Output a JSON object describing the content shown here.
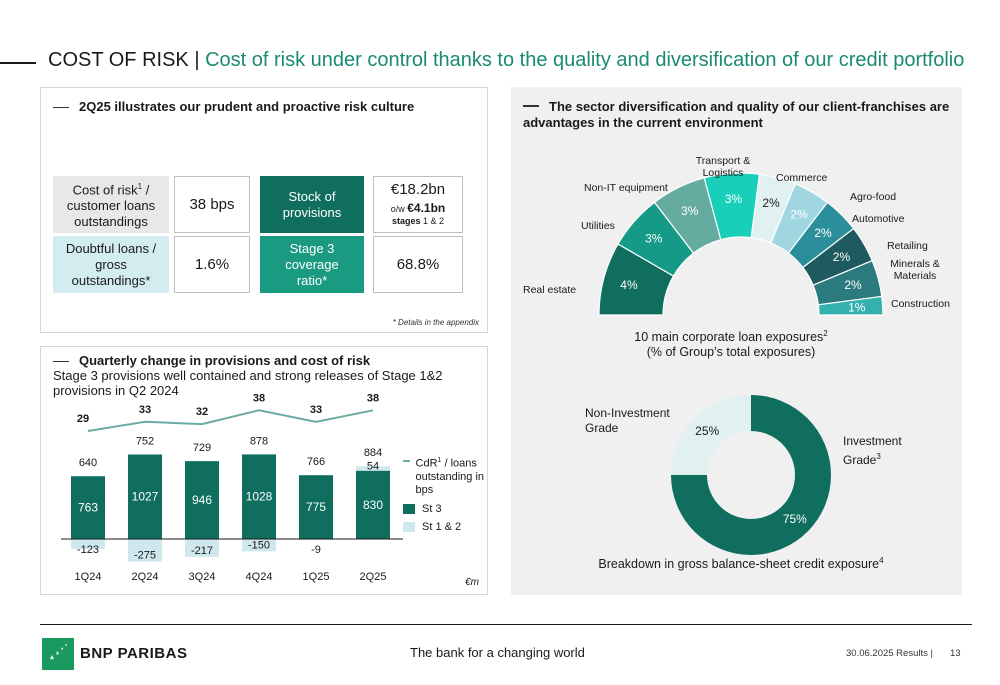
{
  "header": {
    "title_main": "COST OF RISK |",
    "title_sub": "Cost of risk under control thanks to the quality and diversification of our credit portfolio"
  },
  "kpi_panel": {
    "heading": "2Q25 illustrates our prudent and proactive risk culture",
    "cost_of_risk_label_a": "Cost of risk",
    "cost_of_risk_sup": "1",
    "cost_of_risk_label_b": " / customer loans outstandings",
    "cost_of_risk_value": "38 bps",
    "stock_label": "Stock of provisions",
    "stock_value": "€18.2bn",
    "stock_ow_prefix": "o/w ",
    "stock_ow_value": "€4.1bn",
    "stock_ow_stages": "stages",
    "stock_ow_stages_num": " 1 & 2",
    "doubtful_label": "Doubtful loans / gross outstandings*",
    "doubtful_value": "1.6%",
    "stage3_label": "Stage 3 coverage ratio*",
    "stage3_value": "68.8%",
    "note": "* Details in the appendix"
  },
  "provisions_panel": {
    "heading": "Quarterly change in provisions and cost of risk",
    "subheading": "Stage 3 provisions well contained and strong releases of Stage 1&2 provisions in Q2 2024",
    "unit": "€m",
    "legend_line_a": "CdR",
    "legend_line_sup": "1",
    "legend_line_b": " / loans outstanding in bps",
    "legend_st3": "St 3",
    "legend_st12": "St 1 & 2"
  },
  "chart_data": [
    {
      "type": "bar",
      "categories": [
        "1Q24",
        "2Q24",
        "3Q24",
        "4Q24",
        "1Q25",
        "2Q25"
      ],
      "series": [
        {
          "name": "St 3",
          "values": [
            763,
            1027,
            946,
            1028,
            775,
            830
          ]
        },
        {
          "name": "St 1 & 2",
          "values": [
            -123,
            -275,
            -217,
            -150,
            -9,
            54
          ]
        },
        {
          "name": "CdR / loans outstanding in bps",
          "values": [
            29,
            33,
            32,
            38,
            33,
            38
          ]
        }
      ],
      "totals": [
        640,
        752,
        729,
        878,
        766,
        884
      ],
      "total_labels": [
        "640",
        "752",
        "729",
        "878",
        "766",
        "884"
      ],
      "st3_labels": [
        "763",
        "1027",
        "946",
        "1028",
        "775",
        "830"
      ],
      "st12_labels": [
        "-123",
        "-275",
        "-217",
        "-150",
        "-9",
        "54"
      ],
      "cdr_labels": [
        "29",
        "33",
        "32",
        "38",
        "33",
        "38"
      ],
      "colors": {
        "st3": "#0f6e5e",
        "st12": "#cfe8ee",
        "line": "#6aaba2"
      }
    },
    {
      "type": "pie",
      "title_a": "10 main corporate loan exposures",
      "title_sup": "2",
      "title_b": "(% of Group’s total exposures)",
      "categories": [
        "Real estate",
        "Utilities",
        "Non-IT equipment",
        "Transport & Logistics",
        "Commerce",
        "Agro-food",
        "Automotive",
        "Retailing",
        "Minerals & Materials",
        "Construction"
      ],
      "values": [
        4,
        3,
        3,
        3,
        2,
        2,
        2,
        2,
        2,
        1
      ],
      "value_labels": [
        "4%",
        "3%",
        "3%",
        "3%",
        "2%",
        "2%",
        "2%",
        "2%",
        "2%",
        "1%"
      ],
      "colors": [
        "#0f6e5e",
        "#149a86",
        "#66aba0",
        "#19cfb9",
        "#e1f1f2",
        "#9fd6e0",
        "#2a8f9b",
        "#1e5a5e",
        "#2b7a7d",
        "#34b0ae"
      ]
    },
    {
      "type": "pie",
      "title_a": "Breakdown in gross balance-sheet credit exposure",
      "title_sup": "4",
      "categories": [
        "Investment Grade",
        "Non-Investment Grade"
      ],
      "values": [
        75,
        25
      ],
      "value_labels": [
        "75%",
        "25%"
      ],
      "colors": [
        "#0f6e5e",
        "#e1f1f2"
      ]
    }
  ],
  "sector_panel": {
    "heading": "The sector diversification and quality of our client-franchises are advantages in the current environment",
    "ig_label_a": "Investment Grade",
    "ig_sup": "3",
    "nig_label": "Non-Investment Grade"
  },
  "footer": {
    "brand": "BNP PARIBAS",
    "tagline": "The bank for a changing world",
    "date": "30.06.2025 Results |",
    "page": "13"
  }
}
